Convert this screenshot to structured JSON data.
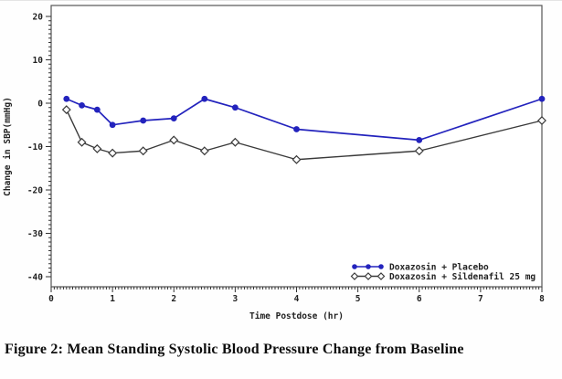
{
  "figure": {
    "caption": "Figure 2: Mean Standing Systolic Blood Pressure Change from Baseline"
  },
  "chart_data": {
    "type": "line",
    "title": "",
    "xlabel": "Time Postdose (hr)",
    "ylabel": "Change in SBP(mmHg)",
    "xlim": [
      0,
      8
    ],
    "ylim": [
      -40,
      20
    ],
    "x_major_ticks": [
      0,
      1,
      2,
      3,
      4,
      5,
      6,
      7,
      8
    ],
    "y_major_ticks": [
      20,
      10,
      0,
      -10,
      -20,
      -30,
      -40
    ],
    "x_minor_step": 0.05,
    "y_minor_step": 1,
    "grid": false,
    "legend_position": "inside-bottom-right",
    "frame": true,
    "frame_color": "#555555",
    "text_color": "#222222",
    "x": [
      0.25,
      0.5,
      0.75,
      1,
      1.5,
      2,
      2.5,
      3,
      4,
      6,
      8
    ],
    "series": [
      {
        "name": "Doxazosin + Placebo",
        "color": "#2323bd",
        "marker": "circle",
        "values": [
          1,
          -0.5,
          -1.5,
          -5,
          -4,
          -3.5,
          1,
          -1,
          -6,
          -8.5,
          1
        ]
      },
      {
        "name": "Doxazosin + Sildenafil 25 mg",
        "color": "#3a3a3a",
        "marker": "diamond",
        "marker_fill": "#ffffff",
        "values": [
          -1.5,
          -9,
          -10.5,
          -11.5,
          -11,
          -8.5,
          -11,
          -9,
          -13,
          -11,
          -4
        ]
      }
    ]
  }
}
